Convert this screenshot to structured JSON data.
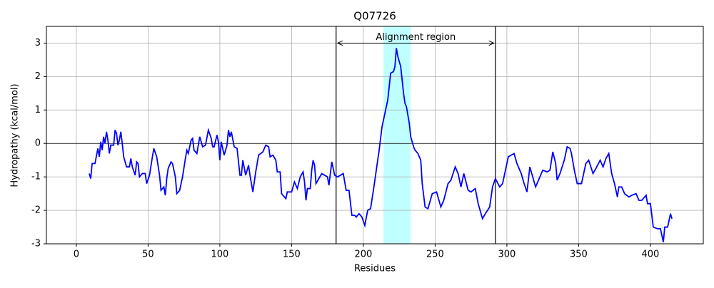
{
  "chart_data": {
    "type": "line",
    "title": "Q07726",
    "x_label": "Residues",
    "y_label": "Hydropathy (kcal/mol)",
    "x": [
      9,
      10,
      11,
      13,
      15,
      16,
      17,
      18,
      19,
      20,
      21,
      22,
      23,
      24,
      26,
      27,
      28,
      29,
      30,
      31,
      32,
      33,
      35,
      37,
      38,
      39,
      41,
      42,
      43,
      44,
      46,
      48,
      49,
      51,
      53,
      54,
      56,
      58,
      59,
      61,
      62,
      63,
      64,
      66,
      67,
      69,
      70,
      72,
      74,
      76,
      77,
      78,
      80,
      81,
      82,
      84,
      86,
      88,
      90,
      92,
      94,
      95,
      96,
      98,
      99,
      100,
      101,
      103,
      105,
      106,
      107,
      108,
      110,
      112,
      114,
      115,
      116,
      118,
      120,
      121,
      123,
      125,
      127,
      130,
      132,
      134,
      135,
      137,
      139,
      140,
      142,
      143,
      146,
      147,
      150,
      152,
      154,
      156,
      158,
      159,
      160,
      161,
      163,
      164,
      165,
      166,
      167,
      169,
      171,
      173,
      175,
      176,
      178,
      180,
      182,
      184,
      186,
      188,
      190,
      192,
      194,
      195,
      197,
      199,
      201,
      203,
      205,
      207,
      209,
      211,
      213,
      215,
      217,
      219,
      221,
      222,
      223,
      224,
      226,
      228,
      229,
      230,
      232,
      233,
      235,
      236,
      238,
      240,
      241,
      243,
      245,
      248,
      251,
      254,
      256,
      259,
      261,
      264,
      266,
      268,
      270,
      273,
      275,
      278,
      280,
      283,
      285,
      288,
      290,
      292,
      295,
      297,
      299,
      301,
      303,
      305,
      307,
      310,
      312,
      314,
      316,
      318,
      320,
      322,
      325,
      328,
      330,
      332,
      334,
      335,
      337,
      340,
      342,
      344,
      345,
      347,
      349,
      352,
      354,
      355,
      357,
      360,
      362,
      365,
      367,
      369,
      371,
      373,
      375,
      377,
      378,
      380,
      382,
      385,
      387,
      390,
      392,
      394,
      397,
      398,
      400,
      402,
      405,
      407,
      409,
      410,
      412,
      414,
      415
    ],
    "values": [
      -0.9,
      -1.05,
      -0.6,
      -0.6,
      -0.15,
      -0.4,
      0.05,
      -0.2,
      0.2,
      0,
      0.35,
      0.1,
      -0.3,
      -0.05,
      -0.05,
      0.4,
      0.3,
      -0.05,
      0.1,
      0.35,
      0,
      -0.4,
      -0.7,
      -0.7,
      -0.45,
      -0.7,
      -0.95,
      -0.55,
      -0.6,
      -1,
      -0.9,
      -0.9,
      -1.2,
      -0.95,
      -0.4,
      -0.15,
      -0.4,
      -0.95,
      -1.4,
      -1.3,
      -1.55,
      -1.05,
      -0.75,
      -0.55,
      -0.6,
      -1,
      -1.5,
      -1.4,
      -1,
      -0.45,
      -0.2,
      -0.3,
      0.1,
      0.15,
      -0.2,
      -0.3,
      0.2,
      -0.1,
      -0.05,
      0.4,
      0.15,
      -0.1,
      -0.1,
      0.25,
      0.05,
      -0.5,
      0.05,
      -0.35,
      -0.05,
      0.4,
      0.2,
      0.35,
      -0.1,
      -0.15,
      -0.95,
      -0.95,
      -0.5,
      -0.95,
      -0.65,
      -0.95,
      -1.45,
      -0.85,
      -0.35,
      -0.25,
      -0.05,
      -0.1,
      -0.4,
      -0.35,
      -0.5,
      -0.85,
      -0.85,
      -1.5,
      -1.65,
      -1.45,
      -1.45,
      -1.15,
      -1.35,
      -1,
      -0.85,
      -1.15,
      -1.7,
      -1.35,
      -1.35,
      -0.8,
      -0.5,
      -0.65,
      -1.2,
      -1.05,
      -0.9,
      -0.95,
      -1,
      -1.25,
      -0.55,
      -0.95,
      -1,
      -0.95,
      -0.9,
      -1.4,
      -1.4,
      -2.15,
      -2.15,
      -2.2,
      -2.1,
      -2.2,
      -2.45,
      -2,
      -1.95,
      -1.4,
      -0.8,
      -0.2,
      0.5,
      0.9,
      1.3,
      2.1,
      2.15,
      2.3,
      2.85,
      2.6,
      2.3,
      1.5,
      1.2,
      1.1,
      0.6,
      0.2,
      -0.1,
      -0.2,
      -0.3,
      -0.5,
      -1.2,
      -1.9,
      -1.95,
      -1.5,
      -1.45,
      -1.9,
      -1.7,
      -1.2,
      -1.1,
      -0.7,
      -0.9,
      -1.3,
      -0.9,
      -1.4,
      -1.45,
      -1.35,
      -1.8,
      -2.25,
      -2.1,
      -1.9,
      -1.3,
      -1.05,
      -1.3,
      -1.2,
      -0.8,
      -0.4,
      -0.35,
      -0.3,
      -0.6,
      -0.9,
      -1.2,
      -1.45,
      -0.7,
      -1,
      -1.3,
      -1.1,
      -0.8,
      -0.85,
      -0.8,
      -0.25,
      -0.6,
      -1.1,
      -0.9,
      -0.5,
      -0.1,
      -0.15,
      -0.3,
      -0.8,
      -1.2,
      -1.2,
      -0.8,
      -0.6,
      -0.5,
      -0.9,
      -0.75,
      -0.5,
      -0.7,
      -0.45,
      -0.3,
      -0.9,
      -1.2,
      -1.6,
      -1.3,
      -1.3,
      -1.5,
      -1.6,
      -1.55,
      -1.5,
      -1.7,
      -1.7,
      -1.55,
      -1.8,
      -1.8,
      -2.5,
      -2.55,
      -2.55,
      -2.95,
      -2.5,
      -2.5,
      -2.1,
      -2.25
    ],
    "color": "#0000ff",
    "xlim": [
      -20.85,
      436.85
    ],
    "ylim": [
      -3,
      3.5
    ],
    "xticks": [
      0,
      50,
      100,
      150,
      200,
      250,
      300,
      350,
      400
    ],
    "yticks": [
      -3,
      -2,
      -1,
      0,
      1,
      2,
      3
    ],
    "grid": true,
    "hline": 0,
    "vlines": [
      181,
      292
    ],
    "span": [
      214,
      233
    ],
    "span_color": "#00ffff",
    "annotation": {
      "text": "Alignment region",
      "x": [
        181,
        292
      ],
      "y": 3
    }
  }
}
